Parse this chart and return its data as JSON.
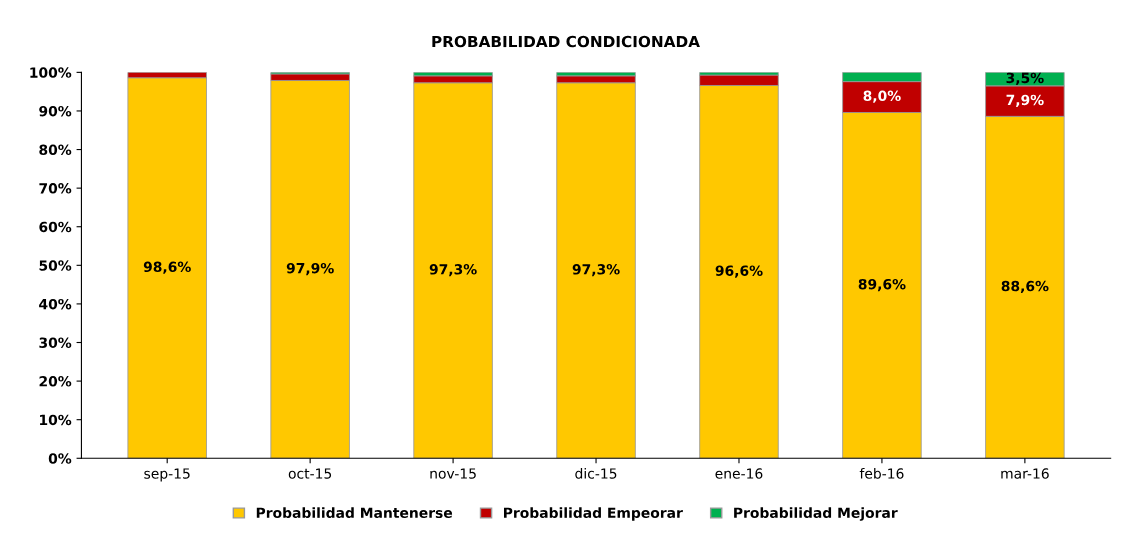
{
  "chart_data": {
    "type": "bar",
    "title": "PROBABILIDAD CONDICIONADA",
    "stacked": true,
    "categories": [
      "sep-15",
      "oct-15",
      "nov-15",
      "dic-15",
      "ene-16",
      "feb-16",
      "mar-16"
    ],
    "series": [
      {
        "name": "Probabilidad Mantenerse",
        "color": "#ffc800",
        "values": [
          98.6,
          97.9,
          97.3,
          97.3,
          96.6,
          89.6,
          88.6
        ],
        "value_labels": [
          "98,6%",
          "97,9%",
          "97,3%",
          "97,3%",
          "96,6%",
          "89,6%",
          "88,6%"
        ]
      },
      {
        "name": "Probabilidad Empeorar",
        "color": "#c00000",
        "values": [
          1.4,
          1.7,
          1.8,
          1.8,
          2.7,
          8.0,
          7.9
        ],
        "value_labels": [
          null,
          null,
          null,
          null,
          null,
          "8,0%",
          "7,9%"
        ]
      },
      {
        "name": "Probabilidad Mejorar",
        "color": "#00b050",
        "values": [
          null,
          0.4,
          0.9,
          0.9,
          0.7,
          2.4,
          3.5
        ],
        "value_labels": [
          null,
          null,
          null,
          null,
          null,
          null,
          "3,5%"
        ]
      }
    ],
    "ylim": [
      0,
      100
    ],
    "yticks": [
      {
        "value": 0,
        "label": "0%"
      },
      {
        "value": 10,
        "label": "10%"
      },
      {
        "value": 20,
        "label": "20%"
      },
      {
        "value": 30,
        "label": "30%"
      },
      {
        "value": 40,
        "label": "40%"
      },
      {
        "value": 50,
        "label": "50%"
      },
      {
        "value": 60,
        "label": "60%"
      },
      {
        "value": 70,
        "label": "70%"
      },
      {
        "value": 80,
        "label": "80%"
      },
      {
        "value": 90,
        "label": "90%"
      },
      {
        "value": 100,
        "label": "100%"
      }
    ],
    "grid": false,
    "legend": "bottom"
  }
}
